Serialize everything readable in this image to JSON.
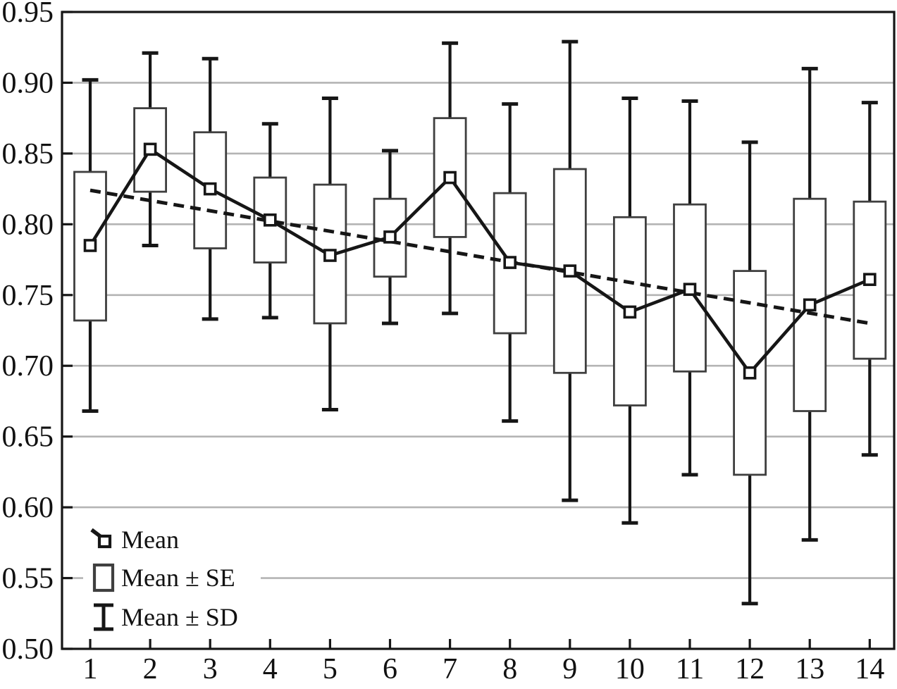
{
  "figure": {
    "title": "",
    "background": "#ffffff",
    "colors": {
      "line": "#161616",
      "box_stroke": "#3f3f3f",
      "grid": "#b4b4b4",
      "text": "#111111"
    }
  },
  "axes": {
    "y_min": 0.5,
    "y_max": 0.95,
    "y_tick_labels": [
      "0.50",
      "0.55",
      "0.60",
      "0.65",
      "0.70",
      "0.75",
      "0.80",
      "0.85",
      "0.90",
      "0.95"
    ],
    "x_tick_labels": [
      "1",
      "2",
      "3",
      "4",
      "5",
      "6",
      "7",
      "8",
      "9",
      "10",
      "11",
      "12",
      "13",
      "14"
    ]
  },
  "legend": {
    "items": [
      {
        "label": "Mean",
        "marker": "square-marker-with-line"
      },
      {
        "label": "Mean ± SE",
        "marker": "open-box"
      },
      {
        "label": "Mean ± SD",
        "marker": "error-bar-whisker"
      }
    ]
  },
  "chart_data": {
    "type": "box",
    "title": "",
    "categories": [
      "1",
      "2",
      "3",
      "4",
      "5",
      "6",
      "7",
      "8",
      "9",
      "10",
      "11",
      "12",
      "13",
      "14"
    ],
    "xlabel": "",
    "ylabel": "",
    "ylim": [
      0.5,
      0.95
    ],
    "ytick_step": 0.05,
    "grid": "horizontal gridlines at 0.55–0.90",
    "legend_position": "inside bottom-left",
    "series": [
      {
        "name": "Mean",
        "type": "line-with-square-markers",
        "values": [
          0.785,
          0.853,
          0.825,
          0.803,
          0.778,
          0.791,
          0.833,
          0.773,
          0.767,
          0.738,
          0.754,
          0.695,
          0.743,
          0.761
        ]
      },
      {
        "name": "Mean + SE",
        "type": "box-top",
        "values": [
          0.837,
          0.882,
          0.865,
          0.833,
          0.828,
          0.818,
          0.875,
          0.822,
          0.839,
          0.805,
          0.814,
          0.767,
          0.818,
          0.816
        ]
      },
      {
        "name": "Mean - SE",
        "type": "box-bottom",
        "values": [
          0.732,
          0.823,
          0.783,
          0.773,
          0.73,
          0.763,
          0.791,
          0.723,
          0.695,
          0.672,
          0.696,
          0.623,
          0.668,
          0.705
        ]
      },
      {
        "name": "Mean + SD",
        "type": "whisker-top",
        "values": [
          0.902,
          0.921,
          0.917,
          0.871,
          0.889,
          0.852,
          0.928,
          0.885,
          0.929,
          0.889,
          0.887,
          0.858,
          0.91,
          0.886
        ]
      },
      {
        "name": "Mean - SD",
        "type": "whisker-bottom",
        "values": [
          0.668,
          0.785,
          0.733,
          0.734,
          0.669,
          0.73,
          0.737,
          0.661,
          0.605,
          0.589,
          0.623,
          0.532,
          0.577,
          0.637
        ]
      },
      {
        "name": "Linear trend",
        "type": "dashed-straight-line",
        "values": [
          0.824,
          0.73
        ],
        "note": "dashed line from category 1 value to category 14 value"
      }
    ]
  }
}
